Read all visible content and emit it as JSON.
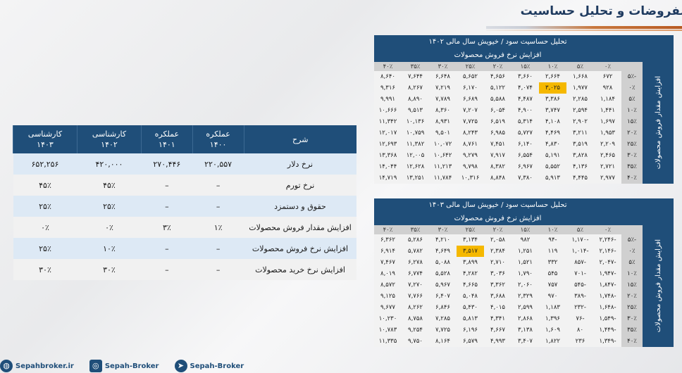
{
  "page": {
    "title": "مفروضات و تحلیل حساسیت"
  },
  "assumptions": {
    "headers": [
      "شرح",
      "عملکره\n۱۴۰۰",
      "عملکره\n۱۴۰۱",
      "کارشناسی\n۱۴۰۲",
      "کارشناسی\n۱۴۰۳"
    ],
    "rows": [
      [
        "نرخ دلار",
        "۲۲۰,۵۵۷",
        "۲۷۰,۴۴۶",
        "۴۲۰,۰۰۰",
        "۶۵۲,۲۵۶"
      ],
      [
        "نرخ تورم",
        "–",
        "–",
        "۴۵٪",
        "۴۵٪"
      ],
      [
        "حقوق و دستمزد",
        "–",
        "–",
        "۲۵٪",
        "۲۵٪"
      ],
      [
        "افزایش مقدار فروش محصولات",
        "۱٪",
        "۳٪",
        "۰٪",
        "۰٪"
      ],
      [
        "افزایش نرخ فروش محصولات",
        "–",
        "–",
        "۱۰٪",
        "۲۵٪"
      ],
      [
        "افزایش نرخ خرید محصولات",
        "–",
        "–",
        "۳۰٪",
        "۳۰٪"
      ]
    ]
  },
  "sensitivity": [
    {
      "title": "تحلیل حساسیت سود / خیویش سال مالی ۱۴۰۲",
      "col_axis": "افزایش نرخ فروش محصولات",
      "row_axis": "افزایش مقدار فروش محصولات",
      "cols": [
        "۰٪",
        "۵٪",
        "۱۰٪",
        "۱۵٪",
        "۲۰٪",
        "۲۵٪",
        "۳۰٪",
        "۳۵٪",
        "۴۰٪"
      ],
      "rows": [
        "-۵٪",
        "۰٪",
        "۵٪",
        "۱۰٪",
        "۱۵٪",
        "۲۰٪",
        "۲۵٪",
        "۳۰٪",
        "۳۵٪",
        "۴۰٪"
      ],
      "highlight": {
        "row": 1,
        "col": 2,
        "color": "#f5b800"
      },
      "values": [
        [
          "۶۷۲",
          "۱,۶۶۸",
          "۲,۶۶۴",
          "۳,۶۶۰",
          "۴,۶۵۶",
          "۵,۶۵۲",
          "۶,۶۴۸",
          "۷,۶۴۴",
          "۸,۶۴۰"
        ],
        [
          "۹۲۸",
          "۱,۹۷۷",
          "۳,۰۲۵",
          "۴,۰۷۴",
          "۵,۱۲۲",
          "۶,۱۷۰",
          "۷,۲۱۹",
          "۸,۲۶۷",
          "۹,۳۱۶"
        ],
        [
          "۱,۱۸۴",
          "۲,۲۸۵",
          "۳,۳۸۶",
          "۴,۴۸۷",
          "۵,۵۸۸",
          "۶,۶۸۹",
          "۷,۷۸۹",
          "۸,۸۹۰",
          "۹,۹۹۱"
        ],
        [
          "۱,۴۴۱",
          "۲,۵۹۴",
          "۳,۷۴۷",
          "۴,۹۰۰",
          "۶,۰۵۴",
          "۷,۲۰۷",
          "۸,۳۶۰",
          "۹,۵۱۳",
          "۱۰,۶۶۶"
        ],
        [
          "۱,۶۹۷",
          "۲,۹۰۲",
          "۴,۱۰۸",
          "۵,۳۱۴",
          "۶,۵۱۹",
          "۷,۷۲۵",
          "۸,۹۳۱",
          "۱۰,۱۳۶",
          "۱۱,۳۴۲"
        ],
        [
          "۱,۹۵۳",
          "۳,۲۱۱",
          "۴,۴۶۹",
          "۵,۷۲۷",
          "۶,۹۸۵",
          "۸,۲۴۳",
          "۹,۵۰۱",
          "۱۰,۷۵۹",
          "۱۲,۰۱۷"
        ],
        [
          "۲,۲۰۹",
          "۳,۵۱۹",
          "۴,۸۳۰",
          "۶,۱۴۰",
          "۷,۴۵۱",
          "۸,۷۶۱",
          "۱۰,۰۷۲",
          "۱۱,۳۸۲",
          "۱۲,۶۹۳"
        ],
        [
          "۲,۴۶۵",
          "۳,۸۲۸",
          "۵,۱۹۱",
          "۶,۵۵۴",
          "۷,۹۱۷",
          "۹,۲۷۹",
          "۱۰,۶۴۲",
          "۱۲,۰۰۵",
          "۱۳,۳۶۸"
        ],
        [
          "۲,۷۲۱",
          "۴,۱۳۶",
          "۵,۵۵۲",
          "۶,۹۶۷",
          "۸,۳۸۲",
          "۹,۷۹۸",
          "۱۱,۲۱۳",
          "۱۲,۶۲۸",
          "۱۴,۰۴۴"
        ],
        [
          "۲,۹۷۷",
          "۴,۴۴۵",
          "۵,۹۱۳",
          "۷,۳۸۰",
          "۸,۸۴۸",
          "۱۰,۳۱۶",
          "۱۱,۷۸۴",
          "۱۳,۲۵۱",
          "۱۴,۷۱۹"
        ]
      ]
    },
    {
      "title": "تحلیل حساسیت سود / خیویش سال مالی ۱۴۰۳",
      "col_axis": "افزایش نرخ فروش محصولات",
      "row_axis": "افزایش مقدار فروش محصولات",
      "cols": [
        "۰٪",
        "۵٪",
        "۱۰٪",
        "۱۵٪",
        "۲۰٪",
        "۲۵٪",
        "۳۰٪",
        "۳۵٪",
        "۴۰٪"
      ],
      "rows": [
        "-۵٪",
        "۰٪",
        "۵٪",
        "۱۰٪",
        "۱۵٪",
        "۲۰٪",
        "۲۵٪",
        "۳۰٪",
        "۳۵٪",
        "۴۰٪"
      ],
      "highlight": {
        "row": 1,
        "col": 5,
        "color": "#f5b800"
      },
      "values": [
        [
          "-۲,۲۴۶",
          "-۱,۱۷۰",
          "-۹۴",
          "۹۸۲",
          "۲,۰۵۸",
          "۳,۱۳۴",
          "۴,۲۱۰",
          "۵,۲۸۶",
          "۶,۳۶۲"
        ],
        [
          "-۲,۱۴۶",
          "-۱,۰۱۴",
          "۱۱۹",
          "۱,۲۵۱",
          "۲,۳۸۴",
          "۳,۵۱۷",
          "۴,۶۴۹",
          "۵,۷۸۲",
          "۶,۹۱۴"
        ],
        [
          "-۲,۰۴۷",
          "-۸۵۷",
          "۳۳۲",
          "۱,۵۲۱",
          "۲,۷۱۰",
          "۳,۸۹۹",
          "۵,۰۸۸",
          "۶,۲۷۸",
          "۷,۴۶۷"
        ],
        [
          "-۱,۹۴۷",
          "-۷۰۱",
          "۵۴۵",
          "۱,۷۹۰",
          "۳,۰۳۶",
          "۴,۲۸۲",
          "۵,۵۲۸",
          "۶,۷۷۴",
          "۸,۰۱۹"
        ],
        [
          "-۱,۸۴۷",
          "-۵۴۵",
          "۷۵۷",
          "۲,۰۶۰",
          "۳,۳۶۲",
          "۴,۶۶۵",
          "۵,۹۶۷",
          "۷,۲۷۰",
          "۸,۵۷۲"
        ],
        [
          "-۱,۷۴۸",
          "-۳۸۹",
          "۹۷۰",
          "۲,۳۲۹",
          "۳,۶۸۸",
          "۵,۰۴۸",
          "۶,۴۰۷",
          "۷,۷۶۶",
          "۹,۱۲۵"
        ],
        [
          "-۱,۶۴۸",
          "-۲۳۲",
          "۱,۱۸۳",
          "۲,۵۹۹",
          "۴,۰۱۵",
          "۵,۴۳۰",
          "۶,۸۴۶",
          "۸,۲۶۲",
          "۹,۶۷۷"
        ],
        [
          "-۱,۵۴۹",
          "-۷۶",
          "۱,۳۹۶",
          "۲,۸۶۸",
          "۴,۳۴۱",
          "۵,۸۱۳",
          "۷,۲۸۵",
          "۸,۷۵۸",
          "۱۰,۲۳۰"
        ],
        [
          "-۱,۴۴۹",
          "۸۰",
          "۱,۶۰۹",
          "۳,۱۳۸",
          "۴,۶۶۷",
          "۶,۱۹۶",
          "۷,۷۲۵",
          "۹,۲۵۴",
          "۱۰,۷۸۳"
        ],
        [
          "-۱,۳۴۹",
          "۲۳۶",
          "۱,۸۲۲",
          "۳,۴۰۷",
          "۴,۹۹۳",
          "۶,۵۷۹",
          "۸,۱۶۴",
          "۹,۷۵۰",
          "۱۱,۳۳۵"
        ]
      ]
    }
  ],
  "footer": [
    {
      "icon": "globe-icon",
      "label": "Sepahbroker.ir"
    },
    {
      "icon": "instagram-icon",
      "label": "Sepah-Broker"
    },
    {
      "icon": "telegram-icon",
      "label": "Sepah-Broker"
    }
  ]
}
